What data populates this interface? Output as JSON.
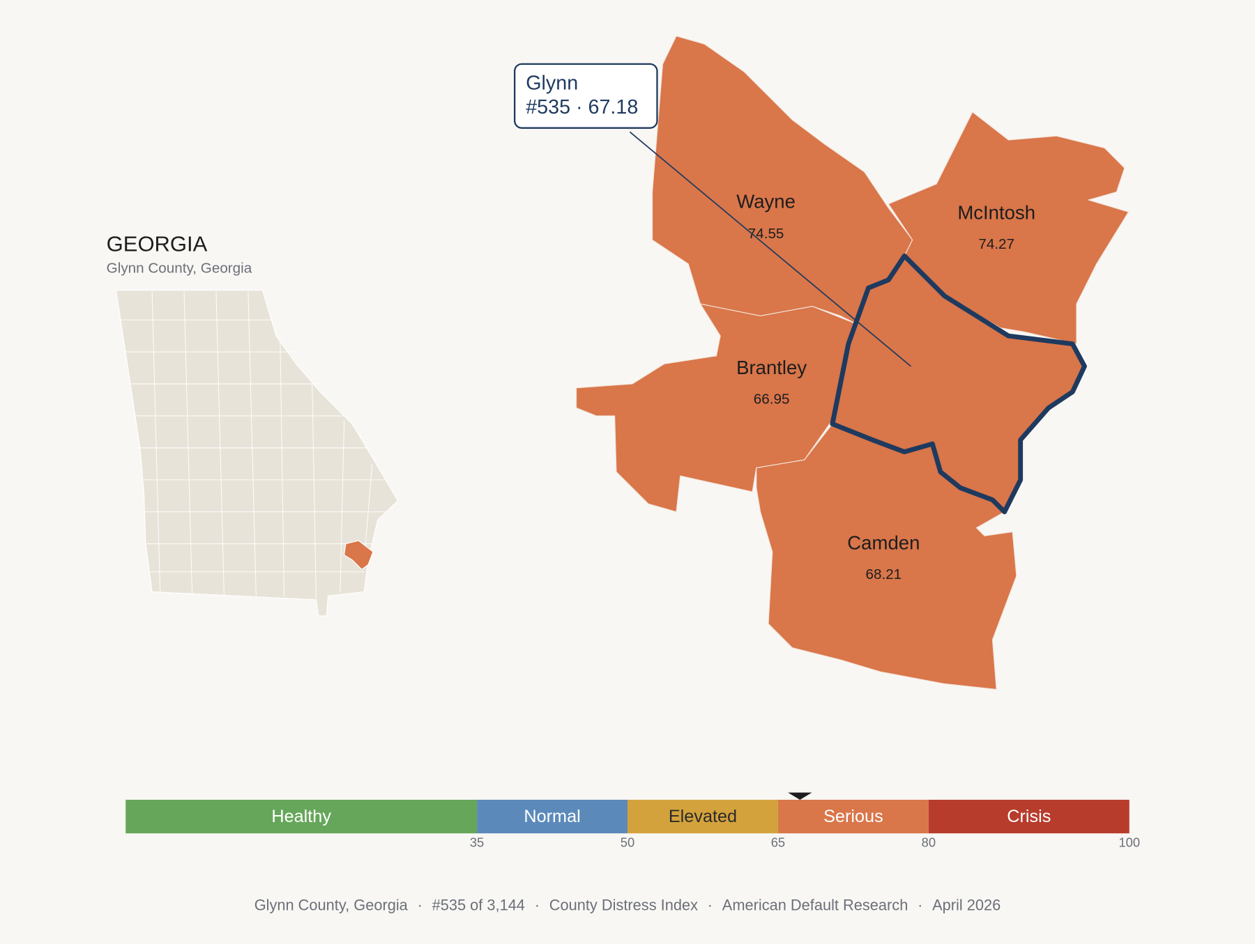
{
  "header": {
    "title": "GEORGIA",
    "subtitle": "Glynn County, Georgia"
  },
  "tooltip": {
    "name": "Glynn",
    "detail": "#535 · 67.18"
  },
  "counties": [
    {
      "name": "Wayne",
      "score": 74.55
    },
    {
      "name": "McIntosh",
      "score": 74.27
    },
    {
      "name": "Brantley",
      "score": 66.95
    },
    {
      "name": "Camden",
      "score": 68.21
    }
  ],
  "scale": {
    "xlim": [
      0,
      100
    ],
    "segments": [
      {
        "name": "Healthy",
        "color": "#66a65a",
        "end": 35
      },
      {
        "name": "Normal",
        "color": "#5b8aba",
        "end": 50
      },
      {
        "name": "Elevated",
        "color": "#d4a23c",
        "end": 65
      },
      {
        "name": "Serious",
        "color": "#d9764a",
        "end": 80
      },
      {
        "name": "Crisis",
        "color": "#b83c2c",
        "end": 100
      }
    ],
    "ticks": [
      35,
      50,
      65,
      80,
      100
    ],
    "marker": 67.18
  },
  "footer": {
    "separator": "·",
    "parts": [
      "Glynn County, Georgia",
      "#535 of 3,144",
      "County Distress Index",
      "American Default Research",
      "April 2026"
    ]
  }
}
